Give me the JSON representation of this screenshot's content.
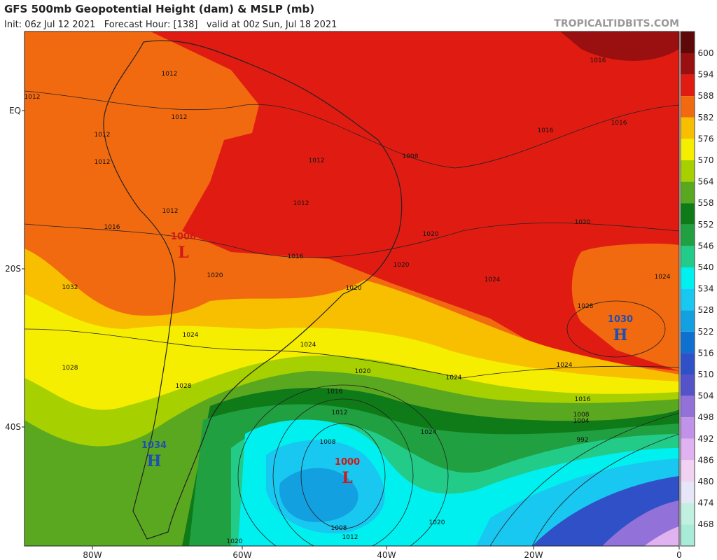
{
  "header": {
    "title": "GFS 500mb Geopotential Height (dam) & MSLP (mb)",
    "subtitle": "Init: 06z Jul 12 2021   Forecast Hour: [138]   valid at 00z Sun, Jul 18 2021",
    "site": "TROPICALTIDBITS.COM"
  },
  "lat_labels": [
    "EQ",
    "20S",
    "40S"
  ],
  "lon_labels": [
    "80W",
    "60W",
    "40W",
    "20W",
    "0"
  ],
  "colorbar": {
    "labels": [
      "600",
      "594",
      "588",
      "582",
      "576",
      "570",
      "564",
      "558",
      "552",
      "546",
      "540",
      "534",
      "528",
      "522",
      "516",
      "510",
      "504",
      "498",
      "492",
      "486",
      "480",
      "474",
      "468"
    ],
    "colors": [
      "#5e0808",
      "#9a0f0f",
      "#e01c12",
      "#f26a10",
      "#f8bf00",
      "#f6ee00",
      "#a6d000",
      "#5aa820",
      "#0f7a18",
      "#20a040",
      "#22cc88",
      "#00f0f0",
      "#18c8f0",
      "#12a0e0",
      "#1070d0",
      "#3050c8",
      "#5454c8",
      "#9272d8",
      "#c092e8",
      "#e0b2f0",
      "#f2d2f2",
      "#e6e6f8",
      "#c2f0e0",
      "#a8ecd8"
    ]
  },
  "pressure_centers": [
    {
      "letter": "H",
      "value": "1030"
    },
    {
      "letter": "H",
      "value": "1034"
    },
    {
      "letter": "L",
      "value": "1000"
    },
    {
      "letter": "L",
      "value": "1006"
    }
  ],
  "contour_labels": [
    "1012",
    "1012",
    "1012",
    "1012",
    "1012",
    "1012",
    "1012",
    "1012",
    "1016",
    "1016",
    "1016",
    "1016",
    "1016",
    "1016",
    "1016",
    "1020",
    "1020",
    "1020",
    "1020",
    "1020",
    "1020",
    "1024",
    "1024",
    "1024",
    "1024",
    "1024",
    "1024",
    "1024",
    "1028",
    "1028",
    "1028",
    "1032",
    "1008",
    "1008",
    "1008",
    "1008",
    "1012",
    "1012",
    "1004",
    "992",
    "1020",
    "1020"
  ]
}
